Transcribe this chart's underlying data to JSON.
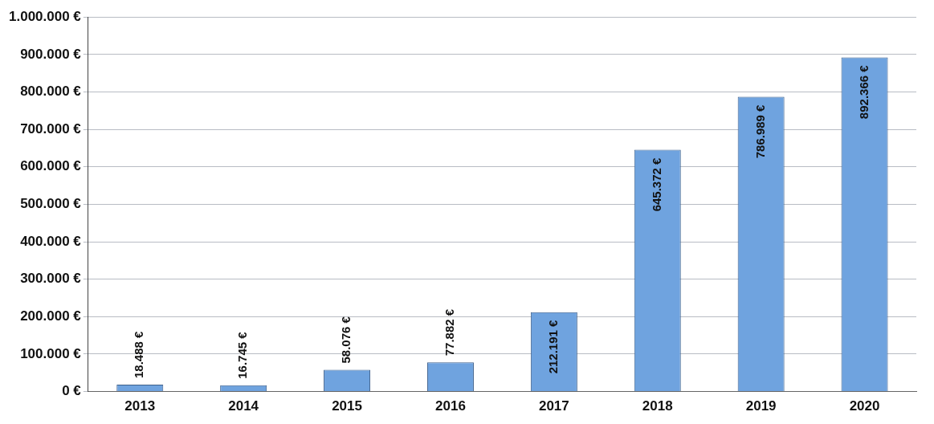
{
  "chart_data": {
    "type": "bar",
    "categories": [
      "2013",
      "2014",
      "2015",
      "2016",
      "2017",
      "2018",
      "2019",
      "2020"
    ],
    "values": [
      18488,
      16745,
      58076,
      77882,
      212191,
      645372,
      786989,
      892366
    ],
    "value_labels": [
      "18.488 €",
      "16.745 €",
      "58.076 €",
      "77.882 €",
      "212.191 €",
      "645.372 €",
      "786.989 €",
      "892.366 €"
    ],
    "color": "#6fa3df",
    "ylim": [
      0,
      1000000
    ],
    "yticks": [
      {
        "value": 0,
        "label": "0 €"
      },
      {
        "value": 100000,
        "label": "100.000 €"
      },
      {
        "value": 200000,
        "label": "200.000 €"
      },
      {
        "value": 300000,
        "label": "300.000 €"
      },
      {
        "value": 400000,
        "label": "400.000 €"
      },
      {
        "value": 500000,
        "label": "500.000 €"
      },
      {
        "value": 600000,
        "label": "600.000 €"
      },
      {
        "value": 700000,
        "label": "700.000 €"
      },
      {
        "value": 800000,
        "label": "800.000 €"
      },
      {
        "value": 900000,
        "label": "900.000 €"
      },
      {
        "value": 1000000,
        "label": "1.000.000 €"
      }
    ],
    "grid": "y"
  }
}
